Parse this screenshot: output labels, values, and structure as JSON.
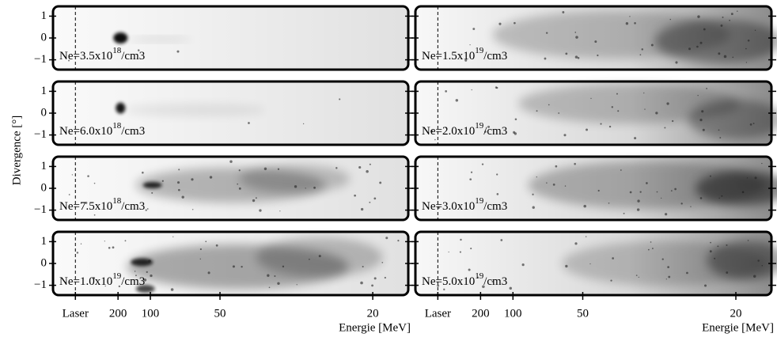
{
  "chart_data": {
    "type": "image-grid",
    "y_label": "Divergence [°]",
    "x_label": "Energie [MeV]",
    "ylim": [
      -1.45,
      1.45
    ],
    "yticks": [
      1,
      0,
      {
        "value": -1,
        "label": "−1"
      }
    ],
    "xticks": [
      "Laser",
      200,
      100,
      50,
      20
    ],
    "panels": [
      {
        "prefix": "Ne=3.5x10",
        "exponent": "18",
        "suffix": "/cm3"
      },
      {
        "prefix": "Ne=6.0x10",
        "exponent": "18",
        "suffix": "/cm3"
      },
      {
        "prefix": "Ne=7.5x10",
        "exponent": "18",
        "suffix": "/cm3"
      },
      {
        "prefix": "Ne=1.0x10",
        "exponent": "19",
        "suffix": "/cm3"
      },
      {
        "prefix": "Ne=1.5x10",
        "exponent": "19",
        "suffix": "/cm3"
      },
      {
        "prefix": "Ne=2.0x10",
        "exponent": "19",
        "suffix": "/cm3"
      },
      {
        "prefix": "Ne=3.0x10",
        "exponent": "19",
        "suffix": "/cm3"
      },
      {
        "prefix": "Ne=5.0x10",
        "exponent": "19",
        "suffix": "/cm3"
      }
    ]
  }
}
